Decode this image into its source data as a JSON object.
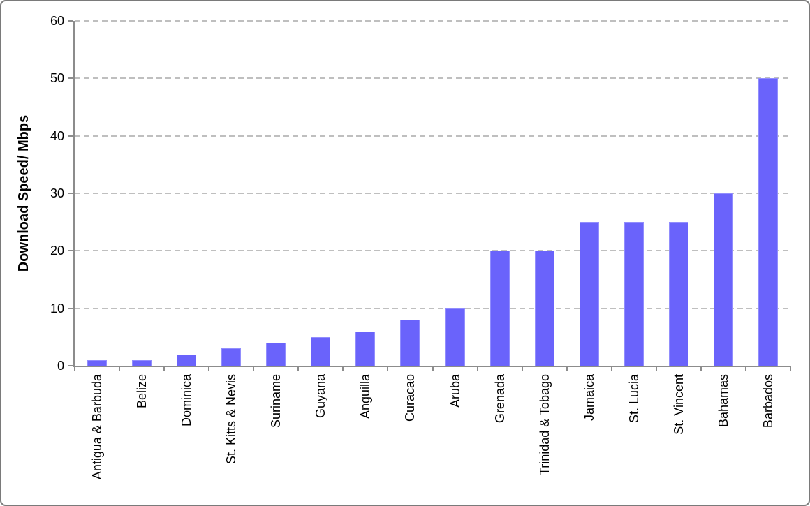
{
  "chart_data": {
    "type": "bar",
    "title": "",
    "xlabel": "",
    "ylabel": "Download Speed/ Mbps",
    "ylim": [
      0,
      60
    ],
    "yticks": [
      0,
      10,
      20,
      30,
      40,
      50,
      60
    ],
    "grid": "horizontal-dashed",
    "legend_position": "none",
    "categories": [
      "Antigua & Barbuda",
      "Belize",
      "Dominica",
      "St. Kitts & Nevis",
      "Suriname",
      "Guyana",
      "Anguilla",
      "Curacao",
      "Aruba",
      "Grenada",
      "Trinidad & Tobago",
      "Jamaica",
      "St. Lucia",
      "St. Vincent",
      "Bahamas",
      "Barbados"
    ],
    "values": [
      1,
      1,
      2,
      3,
      4,
      5,
      6,
      8,
      10,
      20,
      20,
      25,
      25,
      25,
      30,
      50
    ]
  },
  "colors": {
    "bar_fill": "#6A63FB",
    "bar_edge": "#918DFD",
    "gridline": "#BFBFBF",
    "axis": "#8C8C8C",
    "text": "#000000",
    "frame_border": "#7A7A7A",
    "background": "#FFFFFF"
  }
}
